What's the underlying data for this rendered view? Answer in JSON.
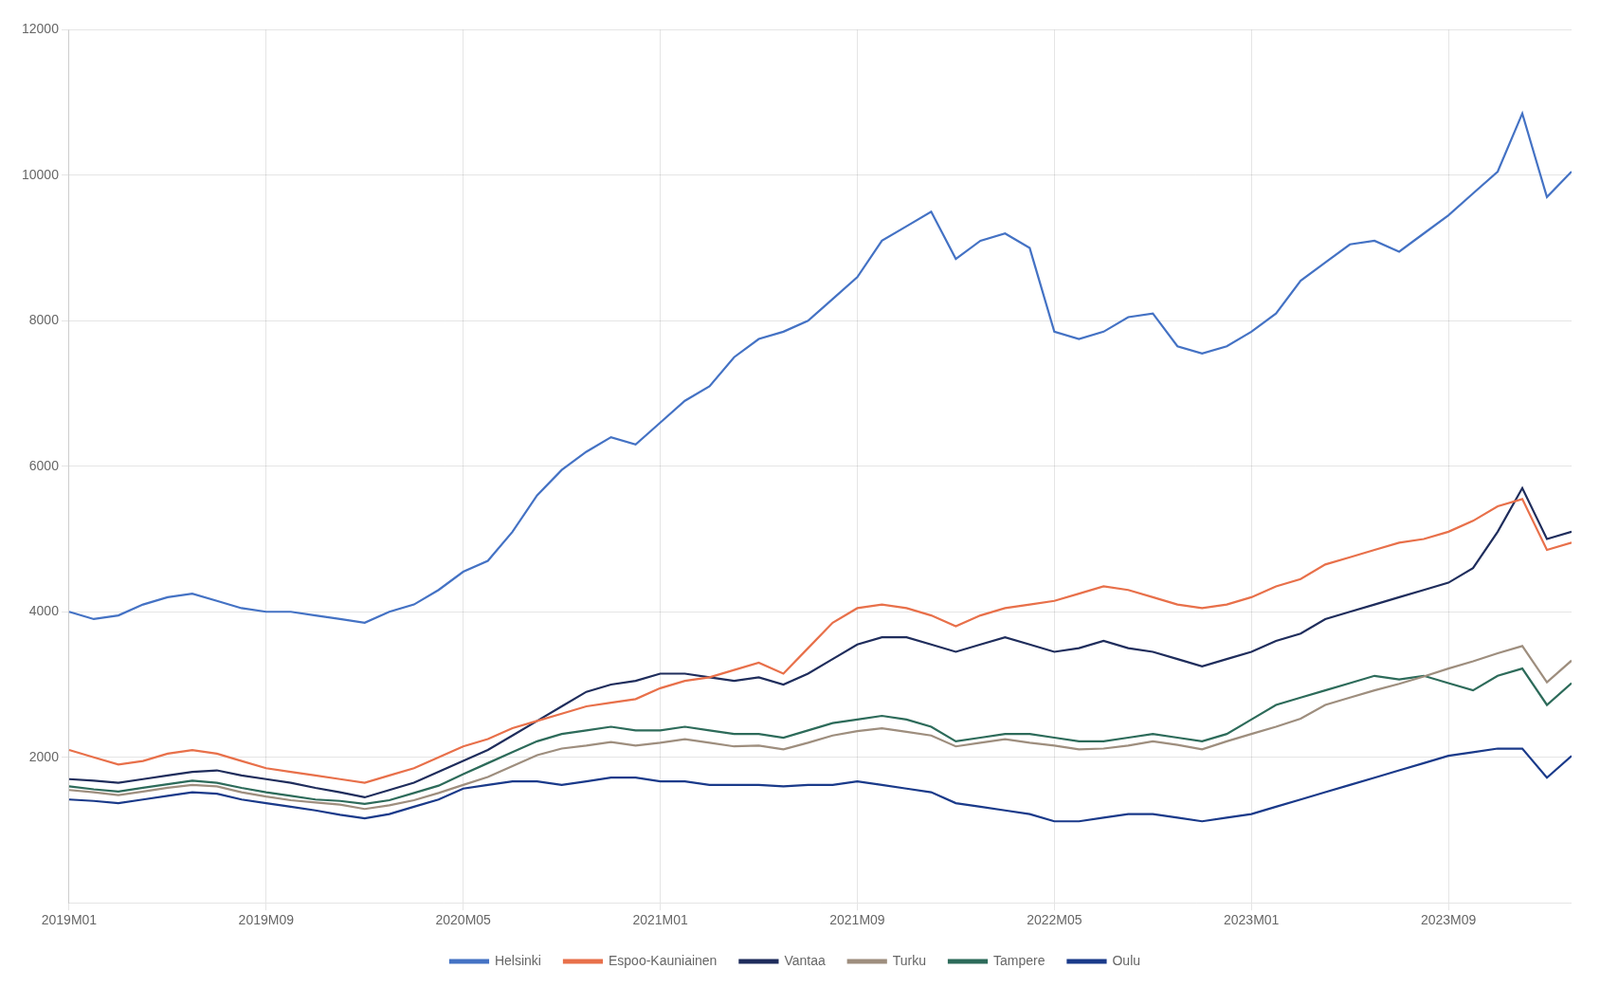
{
  "chart_data": {
    "type": "line",
    "categories": [
      "2019M01",
      null,
      null,
      null,
      null,
      null,
      null,
      null,
      "2019M09",
      null,
      null,
      null,
      null,
      null,
      null,
      null,
      "2020M05",
      null,
      null,
      null,
      null,
      null,
      null,
      null,
      "2021M01",
      null,
      null,
      null,
      null,
      null,
      null,
      null,
      "2021M09",
      null,
      null,
      null,
      null,
      null,
      null,
      null,
      "2022M05",
      null,
      null,
      null,
      null,
      null,
      null,
      null,
      "2023M01",
      null,
      null,
      null,
      null,
      null,
      null,
      null,
      "2023M09",
      null,
      null,
      null,
      null,
      null
    ],
    "series": [
      {
        "name": "Helsinki",
        "color": "#4472C4",
        "values": [
          4000,
          3900,
          3950,
          4100,
          4200,
          4250,
          4150,
          4050,
          4000,
          4000,
          3950,
          3900,
          3850,
          4000,
          4100,
          4300,
          4550,
          4700,
          5100,
          5600,
          5950,
          6200,
          6400,
          6300,
          6600,
          6900,
          7100,
          7500,
          7750,
          7850,
          8000,
          8300,
          8600,
          9100,
          9300,
          9500,
          8850,
          9100,
          9200,
          9000,
          7850,
          7750,
          7850,
          8050,
          8100,
          7650,
          7550,
          7650,
          7850,
          8100,
          8550,
          8800,
          9050,
          9100,
          8950,
          9200,
          9450,
          9750,
          10050,
          10850,
          9700,
          10050
        ]
      },
      {
        "name": "Espoo-Kauniainen",
        "color": "#E8704A",
        "values": [
          2100,
          2000,
          1900,
          1950,
          2050,
          2100,
          2050,
          1950,
          1850,
          1800,
          1750,
          1700,
          1650,
          1750,
          1850,
          2000,
          2150,
          2250,
          2400,
          2500,
          2600,
          2700,
          2750,
          2800,
          2950,
          3050,
          3100,
          3200,
          3300,
          3150,
          3500,
          3850,
          4050,
          4100,
          4050,
          3950,
          3800,
          3950,
          4050,
          4100,
          4150,
          4250,
          4350,
          4300,
          4200,
          4100,
          4050,
          4100,
          4200,
          4350,
          4450,
          4650,
          4750,
          4850,
          4950,
          5000,
          5100,
          5250,
          5450,
          5550,
          4850,
          4950
        ]
      },
      {
        "name": "Vantaa",
        "color": "#1F2D5C",
        "values": [
          1700,
          1680,
          1650,
          1700,
          1750,
          1800,
          1820,
          1750,
          1700,
          1650,
          1580,
          1520,
          1450,
          1550,
          1650,
          1800,
          1950,
          2100,
          2300,
          2500,
          2700,
          2900,
          3000,
          3050,
          3150,
          3150,
          3100,
          3050,
          3100,
          3000,
          3150,
          3350,
          3550,
          3650,
          3650,
          3550,
          3450,
          3550,
          3650,
          3550,
          3450,
          3500,
          3600,
          3500,
          3450,
          3350,
          3250,
          3350,
          3450,
          3600,
          3700,
          3900,
          4000,
          4100,
          4200,
          4300,
          4400,
          4600,
          5100,
          5700,
          5000,
          5100
        ]
      },
      {
        "name": "Turku",
        "color": "#9E8E7E",
        "values": [
          1550,
          1520,
          1480,
          1530,
          1580,
          1620,
          1600,
          1520,
          1460,
          1410,
          1380,
          1350,
          1290,
          1340,
          1410,
          1510,
          1620,
          1730,
          1880,
          2030,
          2120,
          2160,
          2210,
          2160,
          2200,
          2250,
          2200,
          2150,
          2160,
          2110,
          2200,
          2300,
          2360,
          2400,
          2350,
          2300,
          2150,
          2200,
          2250,
          2200,
          2160,
          2110,
          2120,
          2160,
          2220,
          2170,
          2110,
          2220,
          2320,
          2420,
          2530,
          2720,
          2820,
          2920,
          3010,
          3110,
          3220,
          3320,
          3430,
          3530,
          3030,
          3330
        ]
      },
      {
        "name": "Tampere",
        "color": "#2D6B5A",
        "values": [
          1600,
          1560,
          1530,
          1580,
          1630,
          1680,
          1650,
          1580,
          1520,
          1470,
          1420,
          1400,
          1360,
          1410,
          1510,
          1610,
          1770,
          1920,
          2070,
          2220,
          2320,
          2370,
          2420,
          2370,
          2370,
          2420,
          2370,
          2320,
          2320,
          2270,
          2370,
          2470,
          2520,
          2570,
          2520,
          2420,
          2220,
          2270,
          2320,
          2320,
          2270,
          2220,
          2220,
          2270,
          2320,
          2270,
          2220,
          2320,
          2520,
          2720,
          2820,
          2920,
          3020,
          3120,
          3070,
          3120,
          3020,
          2920,
          3120,
          3220,
          2720,
          3020
        ]
      },
      {
        "name": "Oulu",
        "color": "#1A3A8A",
        "values": [
          1420,
          1400,
          1370,
          1420,
          1470,
          1520,
          1500,
          1420,
          1370,
          1320,
          1270,
          1210,
          1160,
          1220,
          1320,
          1420,
          1570,
          1620,
          1670,
          1670,
          1620,
          1670,
          1720,
          1720,
          1670,
          1670,
          1620,
          1620,
          1620,
          1600,
          1620,
          1620,
          1670,
          1620,
          1570,
          1520,
          1370,
          1320,
          1270,
          1220,
          1120,
          1120,
          1170,
          1220,
          1220,
          1170,
          1120,
          1170,
          1220,
          1320,
          1420,
          1520,
          1620,
          1720,
          1820,
          1920,
          2020,
          2070,
          2120,
          2120,
          1720,
          2020
        ]
      }
    ],
    "ylim": [
      0,
      12000
    ],
    "yticks": [
      2000,
      4000,
      6000,
      8000,
      10000,
      12000
    ],
    "grid": true,
    "legend": "bottom"
  }
}
